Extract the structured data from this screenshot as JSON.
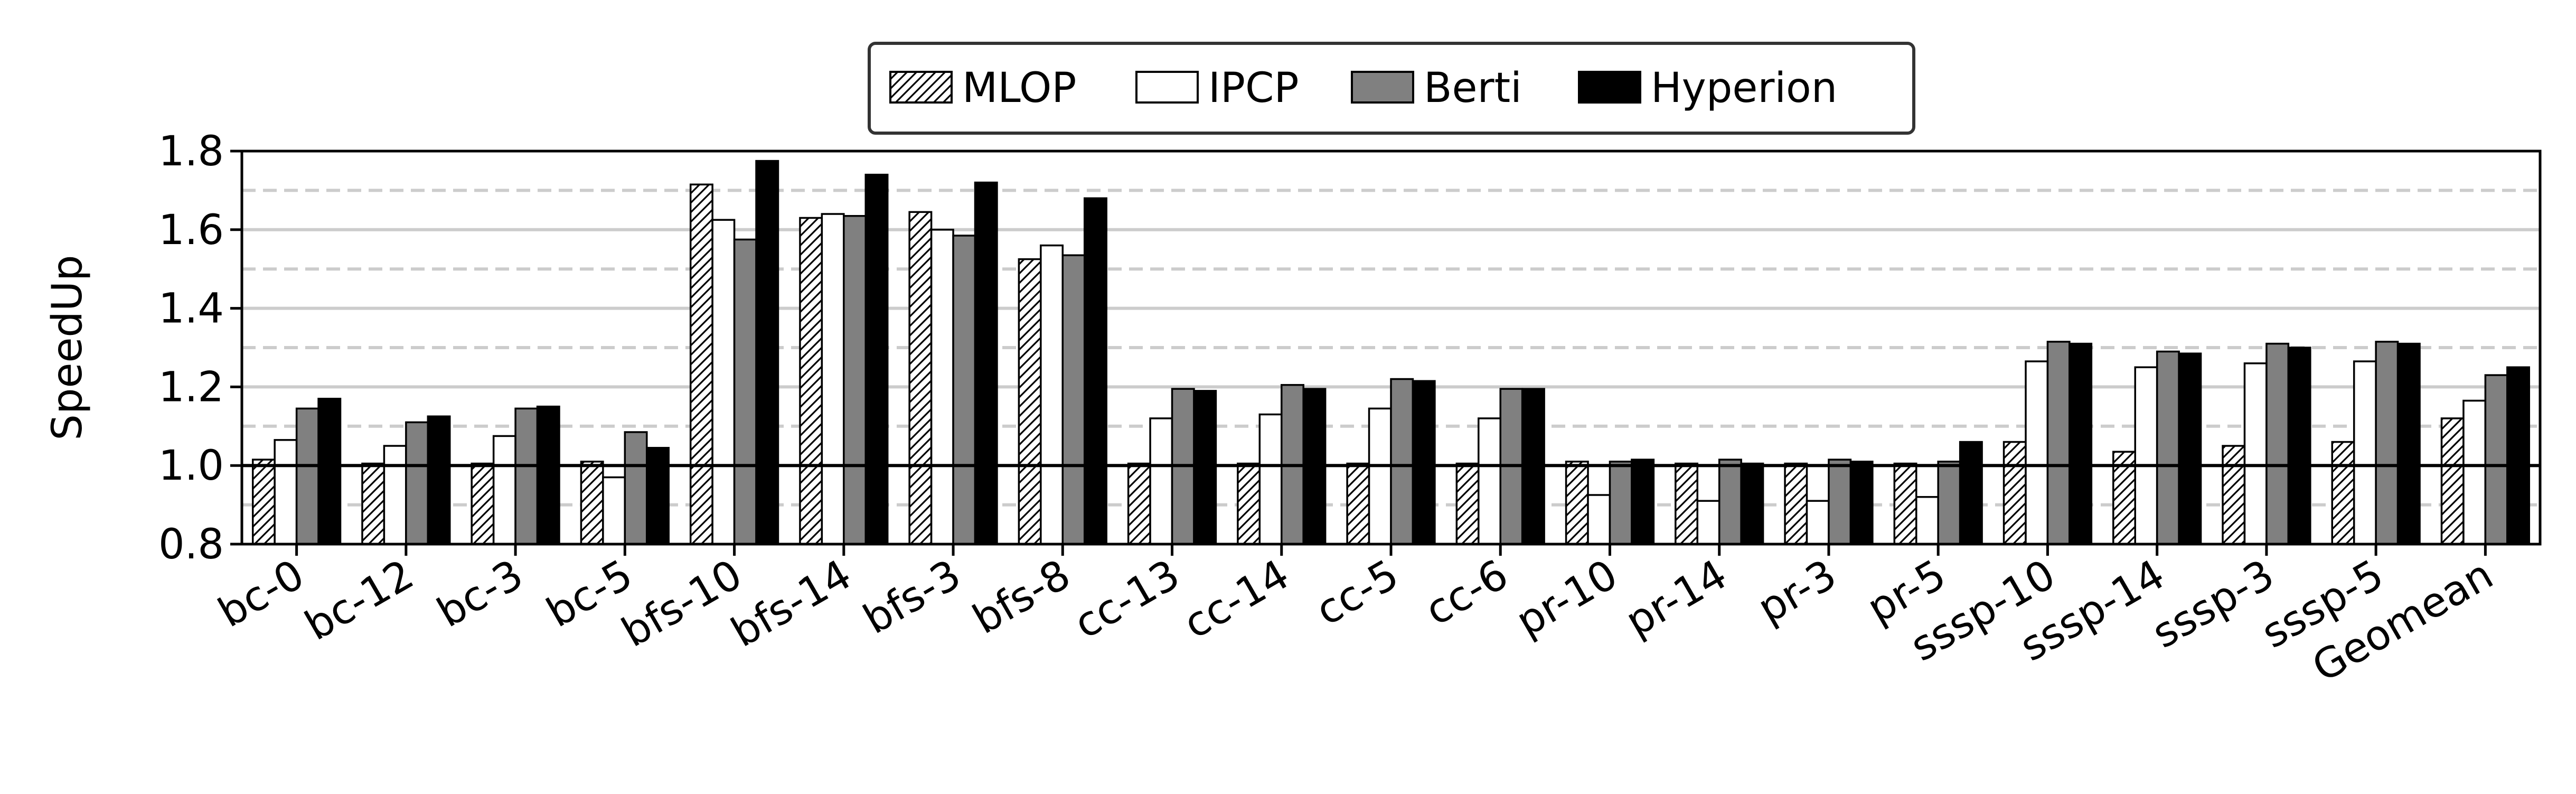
{
  "chart_data": {
    "type": "bar",
    "title": "",
    "xlabel": "",
    "ylabel": "SpeedUp",
    "ylim": [
      0.8,
      1.8
    ],
    "yticks": [
      "0.8",
      "1.0",
      "1.2",
      "1.4",
      "1.6",
      "1.8"
    ],
    "grid": "horizontal, solid at major ticks, dashed at minor ticks",
    "baseline": 1.0,
    "legend_position": "top-center",
    "categories": [
      "bc-0",
      "bc-12",
      "bc-3",
      "bc-5",
      "bfs-10",
      "bfs-14",
      "bfs-3",
      "bfs-8",
      "cc-13",
      "cc-14",
      "cc-5",
      "cc-6",
      "pr-10",
      "pr-14",
      "pr-3",
      "pr-5",
      "sssp-10",
      "sssp-14",
      "sssp-3",
      "sssp-5",
      "Geomean"
    ],
    "series": [
      {
        "name": "MLOP",
        "style": "hatched",
        "fill": "#ffffff",
        "values": [
          1.015,
          1.005,
          1.005,
          1.01,
          1.715,
          1.63,
          1.645,
          1.525,
          1.005,
          1.005,
          1.005,
          1.005,
          1.01,
          1.005,
          1.005,
          1.005,
          1.06,
          1.035,
          1.05,
          1.06,
          1.12
        ]
      },
      {
        "name": "IPCP",
        "style": "solid",
        "fill": "#ffffff",
        "values": [
          1.065,
          1.05,
          1.075,
          0.97,
          1.625,
          1.64,
          1.6,
          1.56,
          1.12,
          1.13,
          1.145,
          1.12,
          0.925,
          0.91,
          0.91,
          0.92,
          1.265,
          1.25,
          1.26,
          1.265,
          1.165
        ]
      },
      {
        "name": "Berti",
        "style": "solid",
        "fill": "#808080",
        "values": [
          1.145,
          1.11,
          1.145,
          1.085,
          1.575,
          1.635,
          1.585,
          1.535,
          1.195,
          1.205,
          1.22,
          1.195,
          1.01,
          1.015,
          1.015,
          1.01,
          1.315,
          1.29,
          1.31,
          1.315,
          1.23
        ]
      },
      {
        "name": "Hyperion",
        "style": "solid",
        "fill": "#000000",
        "values": [
          1.17,
          1.125,
          1.15,
          1.045,
          1.775,
          1.74,
          1.72,
          1.68,
          1.19,
          1.195,
          1.215,
          1.195,
          1.015,
          1.005,
          1.01,
          1.06,
          1.31,
          1.285,
          1.3,
          1.31,
          1.25
        ]
      }
    ]
  }
}
